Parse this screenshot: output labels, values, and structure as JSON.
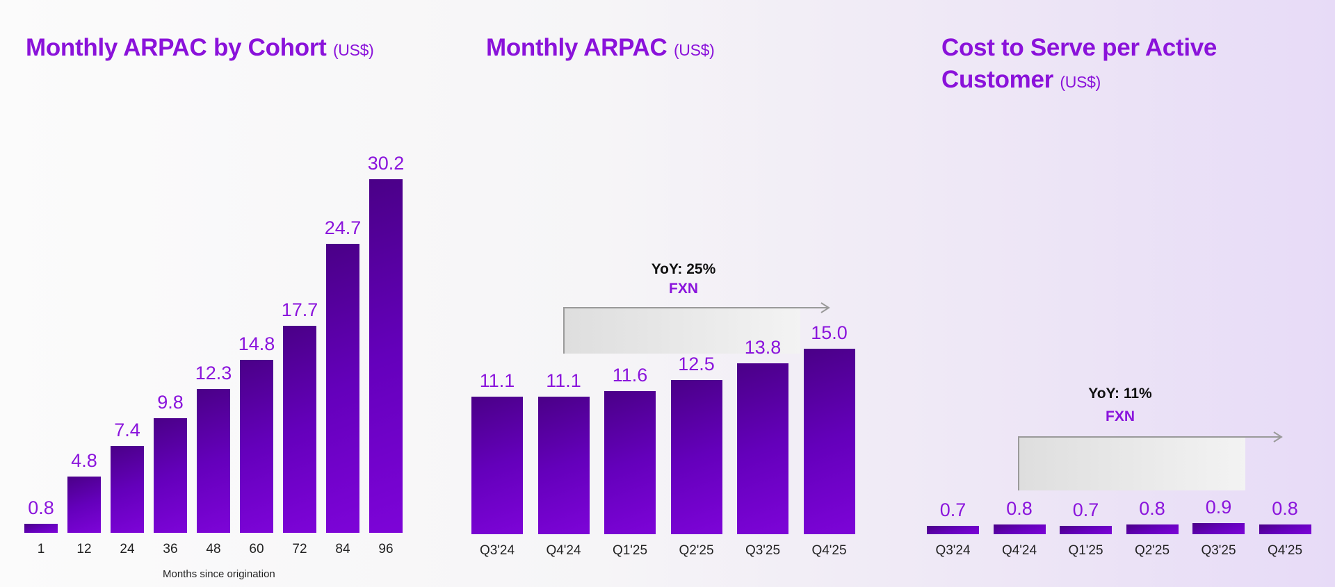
{
  "chart_data": [
    {
      "type": "bar",
      "title": "Monthly ARPAC by Cohort",
      "unit": "(US$)",
      "xlabel": "Months since origination",
      "ylabel": "",
      "categories": [
        "1",
        "12",
        "24",
        "36",
        "48",
        "60",
        "72",
        "84",
        "96"
      ],
      "values": [
        0.8,
        4.8,
        7.4,
        9.8,
        12.3,
        14.8,
        17.7,
        24.7,
        30.2
      ],
      "value_labels": [
        "0.8",
        "4.8",
        "7.4",
        "9.8",
        "12.3",
        "14.8",
        "17.7",
        "24.7",
        "30.2"
      ],
      "grid": false
    },
    {
      "type": "bar",
      "title": "Monthly ARPAC",
      "unit": "(US$)",
      "xlabel": "",
      "ylabel": "",
      "categories": [
        "Q3'24",
        "Q4'24",
        "Q1'25",
        "Q2'25",
        "Q3'25",
        "Q4'25"
      ],
      "values": [
        11.1,
        11.1,
        11.6,
        12.5,
        13.8,
        15.0
      ],
      "value_labels": [
        "11.1",
        "11.1",
        "11.6",
        "12.5",
        "13.8",
        "15.0"
      ],
      "annotation": {
        "yoy": "YoY: 25%",
        "fxn": "FXN",
        "from": "Q4'24",
        "to": "Q4'25"
      },
      "grid": false
    },
    {
      "type": "bar",
      "title": "Cost to Serve per Active",
      "title_line2": "Customer",
      "unit": "(US$)",
      "xlabel": "",
      "ylabel": "",
      "categories": [
        "Q3'24",
        "Q4'24",
        "Q1'25",
        "Q2'25",
        "Q3'25",
        "Q4'25"
      ],
      "values": [
        0.7,
        0.8,
        0.7,
        0.8,
        0.9,
        0.8
      ],
      "value_labels": [
        "0.7",
        "0.8",
        "0.7",
        "0.8",
        "0.9",
        "0.8"
      ],
      "annotation": {
        "yoy": "YoY: 11%",
        "fxn": "FXN",
        "from": "Q4'24",
        "to": "Q4'25"
      },
      "grid": false
    }
  ]
}
